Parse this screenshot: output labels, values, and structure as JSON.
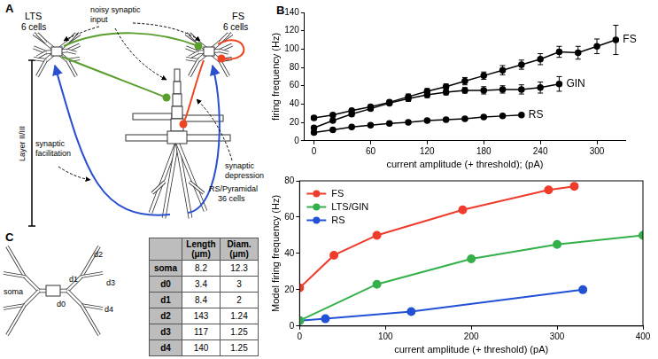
{
  "panel_labels": [
    "A",
    "B",
    "C"
  ],
  "diagram": {
    "lts": {
      "name": "LTS",
      "count": "6 cells"
    },
    "fs": {
      "name": "FS",
      "count": "6 cells"
    },
    "pyramidal": {
      "name": "RS/Pyramidal",
      "count": "36 cells"
    },
    "input_label": [
      "noisy synaptic",
      "input"
    ],
    "layer_label": "Layer II/III",
    "facilitation_label": [
      "synaptic",
      "facilitation"
    ],
    "depression_label": [
      "synaptic",
      "depression"
    ]
  },
  "table": {
    "columns": [
      "Length (μm)",
      "Diam. (μm)"
    ],
    "rows": [
      [
        "soma",
        8.2,
        12.3
      ],
      [
        "d0",
        3.4,
        3
      ],
      [
        "d1",
        8.4,
        2
      ],
      [
        "d2",
        143,
        1.24
      ],
      [
        "d3",
        117,
        1.25
      ],
      [
        "d4",
        140,
        1.25
      ]
    ]
  },
  "chart_data": [
    {
      "type": "line",
      "y_label": "firing frequency (Hz)",
      "x_label": "current amplitude (+ threshold); (pA)",
      "xlim": [
        -10,
        330
      ],
      "xticks": [
        0,
        60,
        120,
        180,
        240,
        300
      ],
      "ylim": [
        0,
        140
      ],
      "yticks": [
        0,
        20,
        40,
        60,
        80,
        100,
        120,
        140
      ],
      "grid": false,
      "marker": "circle",
      "series": [
        {
          "name": "FS",
          "color": "#000000",
          "x": [
            0,
            20,
            40,
            60,
            80,
            100,
            120,
            140,
            160,
            180,
            200,
            220,
            240,
            260,
            280,
            300,
            320
          ],
          "values": [
            25,
            28,
            33,
            37,
            42,
            48,
            54,
            59,
            65,
            71,
            77,
            83,
            89,
            97,
            96,
            103,
            110
          ],
          "errors": [
            2,
            2,
            2,
            2,
            2,
            3,
            3,
            3,
            4,
            4,
            5,
            5,
            6,
            6,
            7,
            8,
            16
          ]
        },
        {
          "name": "GIN",
          "color": "#000000",
          "x": [
            0,
            20,
            40,
            60,
            80,
            100,
            120,
            140,
            160,
            180,
            200,
            220,
            240,
            260
          ],
          "values": [
            14,
            22,
            29,
            35,
            41,
            46,
            50,
            53,
            55,
            55,
            56,
            56,
            58,
            62
          ],
          "errors": [
            1,
            1,
            2,
            2,
            2,
            3,
            3,
            3,
            3,
            4,
            4,
            5,
            6,
            8
          ]
        },
        {
          "name": "RS",
          "color": "#000000",
          "x": [
            0,
            20,
            40,
            60,
            80,
            100,
            120,
            140,
            160,
            180,
            200,
            220
          ],
          "values": [
            9,
            12,
            15,
            17,
            19,
            20,
            22,
            23,
            24,
            26,
            27,
            28
          ],
          "errors": [
            1,
            1,
            1,
            1,
            1,
            1,
            1,
            1,
            1,
            1,
            1,
            1
          ]
        }
      ]
    },
    {
      "type": "line",
      "y_label": "Model firing frequency (Hz)",
      "x_label": "current amplitude (+ threshold) (pA)",
      "xlim": [
        0,
        400
      ],
      "xticks": [
        0,
        100,
        200,
        300,
        400
      ],
      "ylim": [
        0,
        80
      ],
      "yticks": [
        0,
        20,
        40,
        60,
        80
      ],
      "grid": false,
      "marker": "circle",
      "legend": "upper left",
      "series": [
        {
          "name": "FS",
          "color": "#ee3b2b",
          "x": [
            0,
            40,
            90,
            190,
            290,
            320
          ],
          "values": [
            21,
            39,
            50,
            64,
            75,
            77
          ]
        },
        {
          "name": "LTS/GIN",
          "color": "#33b04a",
          "x": [
            0,
            90,
            200,
            300,
            400
          ],
          "values": [
            3,
            23,
            37,
            45,
            50
          ]
        },
        {
          "name": "RS",
          "color": "#2251d6",
          "x": [
            0,
            30,
            130,
            330
          ],
          "values": [
            3,
            4,
            8,
            20
          ]
        }
      ]
    }
  ]
}
